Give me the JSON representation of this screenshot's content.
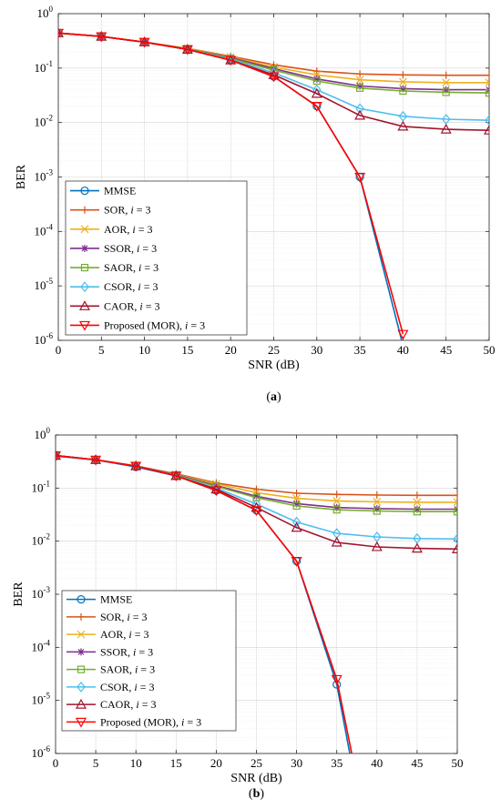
{
  "chart_data": [
    {
      "type": "line",
      "caption_letter": "a",
      "xlabel": "SNR (dB)",
      "ylabel": "BER",
      "xlim": [
        0,
        50
      ],
      "ylim": [
        1e-06,
        1
      ],
      "yscale": "log",
      "grid": true,
      "legend_position": "bottom-left",
      "x_ticks": [
        "0",
        "5",
        "10",
        "15",
        "20",
        "25",
        "30",
        "35",
        "40",
        "45",
        "50"
      ],
      "x": [
        0,
        5,
        10,
        15,
        20,
        25,
        30,
        35,
        40,
        45,
        50
      ],
      "series": [
        {
          "name": "MMSE",
          "color": "#0072BD",
          "marker": "circle",
          "values": [
            0.44,
            0.38,
            0.3,
            0.22,
            0.14,
            0.07,
            0.02,
            0.001,
            8e-07,
            null,
            null
          ]
        },
        {
          "name": "SOR, i = 3",
          "color": "#D95319",
          "marker": "plus",
          "values": [
            0.44,
            0.38,
            0.3,
            0.23,
            0.165,
            0.115,
            0.088,
            0.078,
            0.075,
            0.074,
            0.074
          ]
        },
        {
          "name": "AOR, i = 3",
          "color": "#EDB120",
          "marker": "x",
          "values": [
            0.44,
            0.38,
            0.3,
            0.23,
            0.16,
            0.105,
            0.075,
            0.061,
            0.056,
            0.054,
            0.054
          ]
        },
        {
          "name": "SSOR, i = 3",
          "color": "#7E2F8E",
          "marker": "star",
          "values": [
            0.44,
            0.38,
            0.3,
            0.225,
            0.155,
            0.098,
            0.063,
            0.047,
            0.042,
            0.04,
            0.04
          ]
        },
        {
          "name": "SAOR, i = 3",
          "color": "#77AC30",
          "marker": "square",
          "values": [
            0.44,
            0.38,
            0.3,
            0.225,
            0.15,
            0.092,
            0.058,
            0.043,
            0.038,
            0.036,
            0.035
          ]
        },
        {
          "name": "CSOR, i = 3",
          "color": "#4DBEEE",
          "marker": "diamond",
          "values": [
            0.44,
            0.38,
            0.3,
            0.22,
            0.145,
            0.082,
            0.04,
            0.018,
            0.013,
            0.0115,
            0.011
          ]
        },
        {
          "name": "CAOR, i = 3",
          "color": "#A2142F",
          "marker": "triangle-up",
          "values": [
            0.44,
            0.38,
            0.3,
            0.22,
            0.14,
            0.075,
            0.034,
            0.0135,
            0.0085,
            0.0075,
            0.0072
          ]
        },
        {
          "name": "Proposed (MOR), i = 3",
          "color": "#FF0000",
          "marker": "triangle-down",
          "values": [
            0.44,
            0.38,
            0.3,
            0.22,
            0.14,
            0.07,
            0.02,
            0.001,
            1.3e-06,
            null,
            null
          ]
        }
      ]
    },
    {
      "type": "line",
      "caption_letter": "b",
      "xlabel": "SNR (dB)",
      "ylabel": "BER",
      "xlim": [
        0,
        50
      ],
      "ylim": [
        1e-06,
        1
      ],
      "yscale": "log",
      "grid": true,
      "legend_position": "bottom-left",
      "x_ticks": [
        "0",
        "5",
        "10",
        "15",
        "20",
        "25",
        "30",
        "35",
        "40",
        "45",
        "50"
      ],
      "x": [
        0,
        5,
        10,
        15,
        20,
        25,
        30,
        35,
        37,
        40,
        45,
        50
      ],
      "series": [
        {
          "name": "MMSE",
          "color": "#0072BD",
          "marker": "circle",
          "values": [
            0.4,
            0.34,
            0.25,
            0.17,
            0.09,
            0.038,
            0.0042,
            2e-05,
            5e-07,
            null,
            null,
            null
          ]
        },
        {
          "name": "SOR, i = 3",
          "color": "#D95319",
          "marker": "plus",
          "values": [
            0.41,
            0.34,
            0.26,
            0.185,
            0.125,
            0.095,
            0.08,
            0.076,
            null,
            0.074,
            0.073,
            0.073
          ]
        },
        {
          "name": "AOR, i = 3",
          "color": "#EDB120",
          "marker": "x",
          "values": [
            0.41,
            0.34,
            0.26,
            0.18,
            0.12,
            0.082,
            0.064,
            0.057,
            null,
            0.055,
            0.054,
            0.054
          ]
        },
        {
          "name": "SSOR, i = 3",
          "color": "#7E2F8E",
          "marker": "star",
          "values": [
            0.41,
            0.34,
            0.26,
            0.178,
            0.112,
            0.07,
            0.051,
            0.043,
            null,
            0.041,
            0.04,
            0.04
          ]
        },
        {
          "name": "SAOR, i = 3",
          "color": "#77AC30",
          "marker": "square",
          "values": [
            0.41,
            0.34,
            0.26,
            0.175,
            0.108,
            0.066,
            0.046,
            0.039,
            null,
            0.037,
            0.036,
            0.036
          ]
        },
        {
          "name": "CSOR, i = 3",
          "color": "#4DBEEE",
          "marker": "diamond",
          "values": [
            0.41,
            0.34,
            0.26,
            0.172,
            0.1,
            0.05,
            0.023,
            0.014,
            null,
            0.012,
            0.0112,
            0.011
          ]
        },
        {
          "name": "CAOR, i = 3",
          "color": "#A2142F",
          "marker": "triangle-up",
          "values": [
            0.41,
            0.34,
            0.26,
            0.17,
            0.095,
            0.043,
            0.018,
            0.0095,
            null,
            0.0078,
            0.0073,
            0.0071
          ]
        },
        {
          "name": "Proposed (MOR), i = 3",
          "color": "#FF0000",
          "marker": "triangle-down",
          "values": [
            0.41,
            0.34,
            0.26,
            0.17,
            0.09,
            0.038,
            0.0042,
            2.5e-05,
            8e-07,
            null,
            null,
            null
          ]
        }
      ]
    }
  ]
}
